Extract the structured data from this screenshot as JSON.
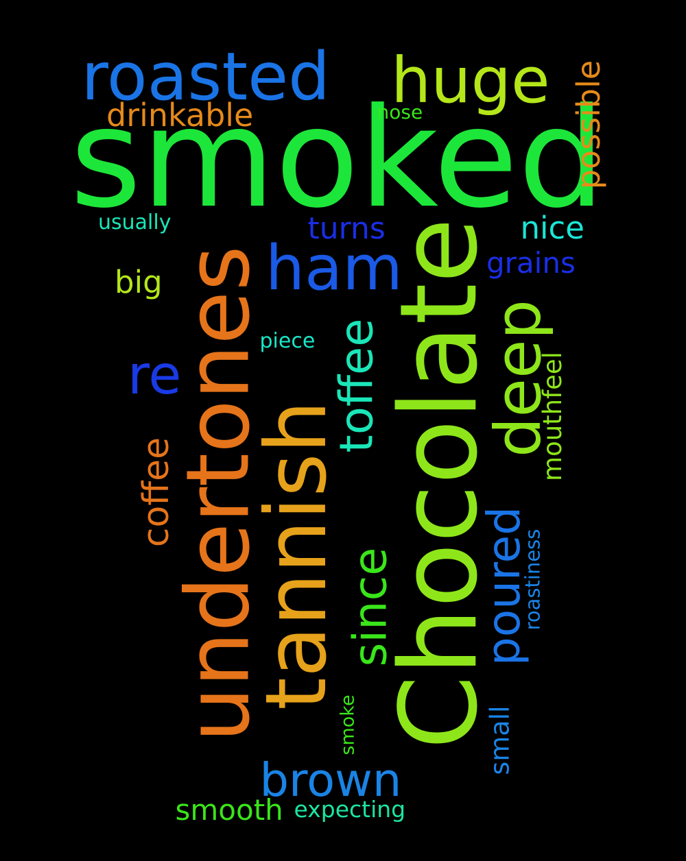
{
  "words": [
    {
      "text": "smoked",
      "color": "#1de63a"
    },
    {
      "text": "Chocolate",
      "color": "#8ee61a"
    },
    {
      "text": "undertones",
      "color": "#e6741a"
    },
    {
      "text": "tannish",
      "color": "#e6a21a"
    },
    {
      "text": "roasted",
      "color": "#1a74e6"
    },
    {
      "text": "huge",
      "color": "#b4e61a"
    },
    {
      "text": "ham",
      "color": "#1a5ae6"
    },
    {
      "text": "deep",
      "color": "#8ee61a"
    },
    {
      "text": "re",
      "color": "#1a3ae6"
    },
    {
      "text": "toffee",
      "color": "#1ae6b8"
    },
    {
      "text": "since",
      "color": "#3ae61a"
    },
    {
      "text": "poured",
      "color": "#1a74e6"
    },
    {
      "text": "brown",
      "color": "#1a84e6"
    },
    {
      "text": "coffee",
      "color": "#e6741a"
    },
    {
      "text": "drinkable",
      "color": "#e68a1a"
    },
    {
      "text": "possible",
      "color": "#e68a1a"
    },
    {
      "text": "turns",
      "color": "#1a2ee6"
    },
    {
      "text": "nice",
      "color": "#1ae6d6"
    },
    {
      "text": "grains",
      "color": "#1a2ee6"
    },
    {
      "text": "big",
      "color": "#b4e61a"
    },
    {
      "text": "smooth",
      "color": "#3ae61a"
    },
    {
      "text": "mouthfeel",
      "color": "#8ee61a"
    },
    {
      "text": "small",
      "color": "#1a84e6"
    },
    {
      "text": "expecting",
      "color": "#1ae6a0"
    },
    {
      "text": "usually",
      "color": "#1ae6b8"
    },
    {
      "text": "nose",
      "color": "#3ae61a"
    },
    {
      "text": "piece",
      "color": "#1ae6c8"
    },
    {
      "text": "roastiness",
      "color": "#1a84e6"
    },
    {
      "text": "smoke",
      "color": "#3ae61a"
    }
  ]
}
